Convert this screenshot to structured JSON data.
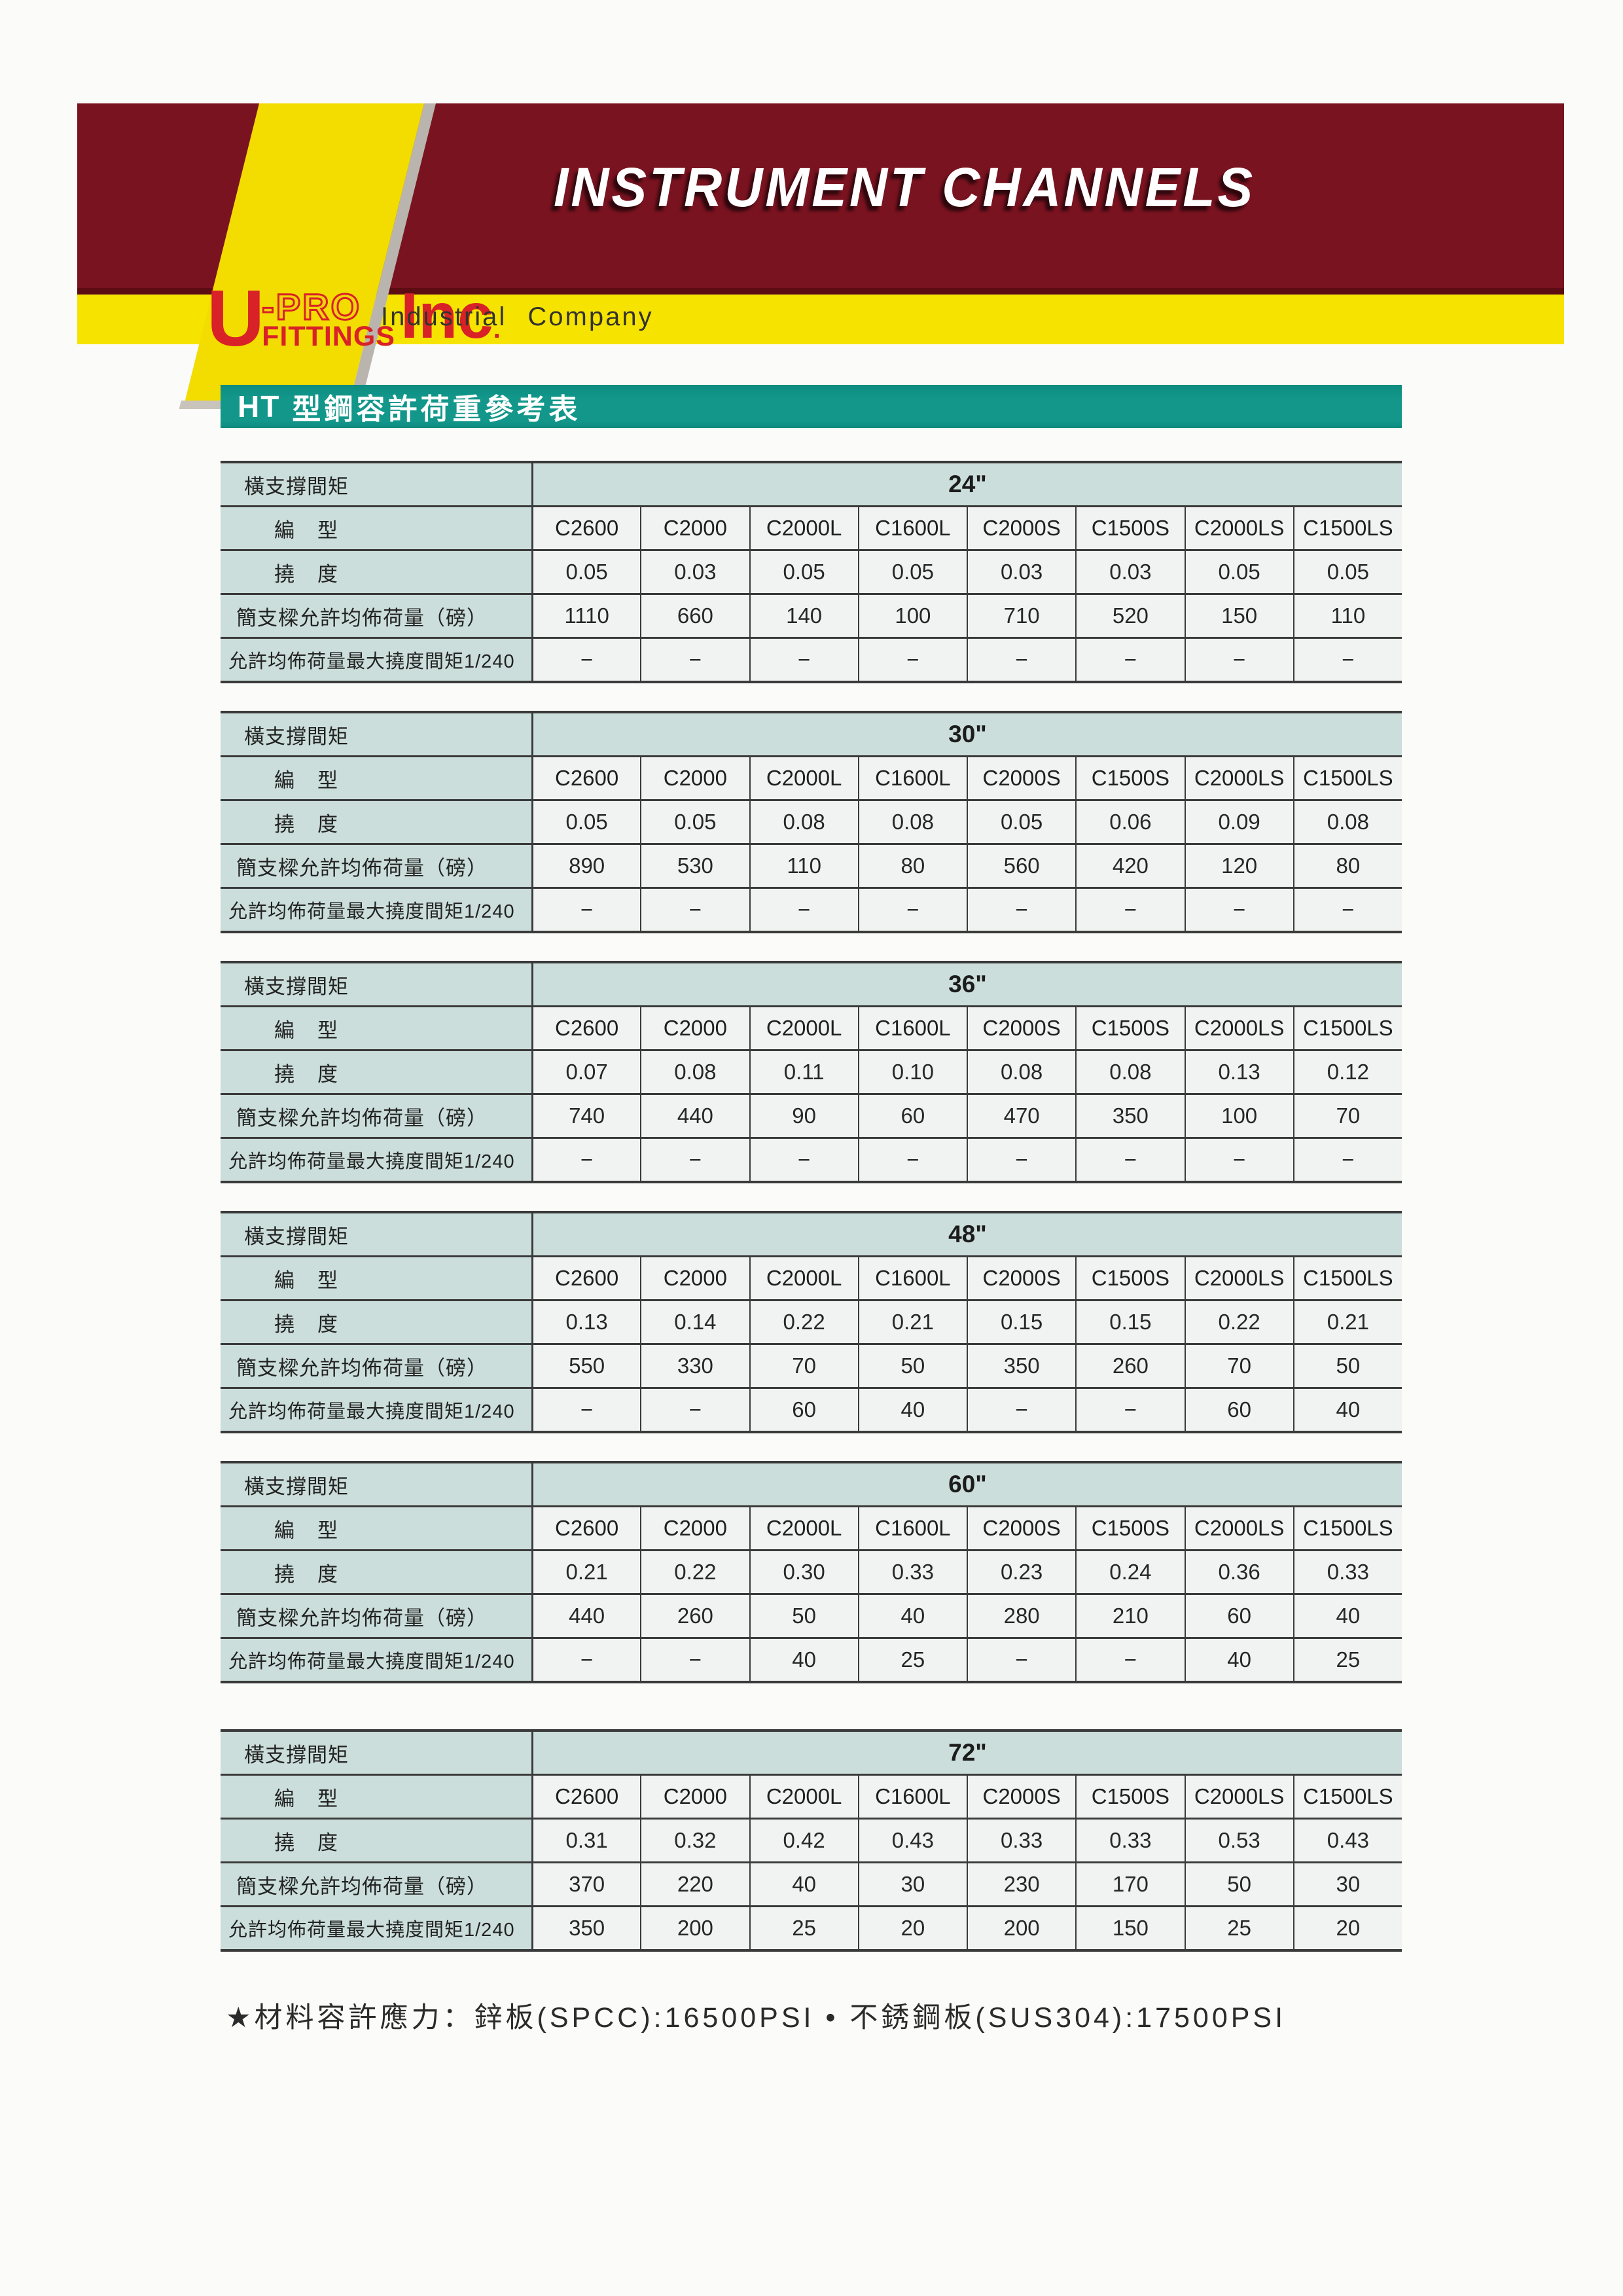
{
  "banner": {
    "title": "INSTRUMENT CHANNELS"
  },
  "logo": {
    "u": "U",
    "pro": "-PRO",
    "fittings": "FITTINGS",
    "inc": "Inc",
    "dot": ".",
    "tagline": "Industrial Company"
  },
  "section": {
    "prefix": "HT",
    "title": "型鋼容許荷重參考表"
  },
  "table": {
    "row_labels": {
      "span": "橫支撐間矩",
      "model": "編　型",
      "deflection": "撓　度",
      "load": "簡支樑允許均佈荷量（磅）",
      "max": "允許均佈荷量最大撓度間矩1/240"
    },
    "models": [
      "C2600",
      "C2000",
      "C2000L",
      "C1600L",
      "C2000S",
      "C1500S",
      "C2000LS",
      "C1500LS"
    ]
  },
  "tables": [
    {
      "span": "24\"",
      "deflection": [
        "0.05",
        "0.03",
        "0.05",
        "0.05",
        "0.03",
        "0.03",
        "0.05",
        "0.05"
      ],
      "load": [
        "1110",
        "660",
        "140",
        "100",
        "710",
        "520",
        "150",
        "110"
      ],
      "max": [
        "−",
        "−",
        "−",
        "−",
        "−",
        "−",
        "−",
        "−"
      ]
    },
    {
      "span": "30\"",
      "deflection": [
        "0.05",
        "0.05",
        "0.08",
        "0.08",
        "0.05",
        "0.06",
        "0.09",
        "0.08"
      ],
      "load": [
        "890",
        "530",
        "110",
        "80",
        "560",
        "420",
        "120",
        "80"
      ],
      "max": [
        "−",
        "−",
        "−",
        "−",
        "−",
        "−",
        "−",
        "−"
      ]
    },
    {
      "span": "36\"",
      "deflection": [
        "0.07",
        "0.08",
        "0.11",
        "0.10",
        "0.08",
        "0.08",
        "0.13",
        "0.12"
      ],
      "load": [
        "740",
        "440",
        "90",
        "60",
        "470",
        "350",
        "100",
        "70"
      ],
      "max": [
        "−",
        "−",
        "−",
        "−",
        "−",
        "−",
        "−",
        "−"
      ]
    },
    {
      "span": "48\"",
      "deflection": [
        "0.13",
        "0.14",
        "0.22",
        "0.21",
        "0.15",
        "0.15",
        "0.22",
        "0.21"
      ],
      "load": [
        "550",
        "330",
        "70",
        "50",
        "350",
        "260",
        "70",
        "50"
      ],
      "max": [
        "−",
        "−",
        "60",
        "40",
        "−",
        "−",
        "60",
        "40"
      ]
    },
    {
      "span": "60\"",
      "deflection": [
        "0.21",
        "0.22",
        "0.30",
        "0.33",
        "0.23",
        "0.24",
        "0.36",
        "0.33"
      ],
      "load": [
        "440",
        "260",
        "50",
        "40",
        "280",
        "210",
        "60",
        "40"
      ],
      "max": [
        "−",
        "−",
        "40",
        "25",
        "−",
        "−",
        "40",
        "25"
      ]
    },
    {
      "span": "72\"",
      "deflection": [
        "0.31",
        "0.32",
        "0.42",
        "0.43",
        "0.33",
        "0.33",
        "0.53",
        "0.43"
      ],
      "load": [
        "370",
        "220",
        "40",
        "30",
        "230",
        "170",
        "50",
        "30"
      ],
      "max": [
        "350",
        "200",
        "25",
        "20",
        "200",
        "150",
        "25",
        "20"
      ]
    }
  ],
  "footnote": "★材料容許應力：鋅板(SPCC):16500PSI • 不銹鋼板(SUS304):17500PSI",
  "colors": {
    "banner_maroon": "#7a1320",
    "band_yellow": "#f6e400",
    "stripe_yellow": "#f3dc00",
    "logo_red": "#d92128",
    "section_teal": "#12978a",
    "table_header_fill": "#cbdedb",
    "table_cell_fill": "#f0f3f1",
    "table_border": "#3a3a3a"
  }
}
